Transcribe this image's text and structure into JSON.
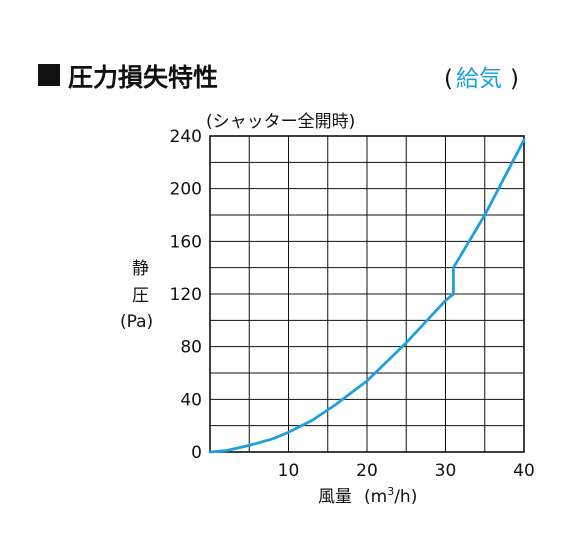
{
  "header": {
    "title_marker": "■",
    "title": "圧力損失特性",
    "mode_open": "(",
    "mode": "給気",
    "mode_close": ")"
  },
  "colors": {
    "accent": "#1ea0dc",
    "grid": "#111111",
    "text": "#111111"
  },
  "chart_data": {
    "type": "line",
    "title": "圧力損失特性",
    "subtitle": "(シャッター全開時)",
    "xlabel": "風量",
    "xunit_open": "(",
    "xunit_base": "m",
    "xunit_sup": "3",
    "xunit_rest": "/h)",
    "ylabel_line1": "静",
    "ylabel_line2": "圧",
    "ylabel_line3": "(Pa)",
    "xlim": [
      0,
      40
    ],
    "ylim": [
      0,
      240
    ],
    "grid": true,
    "xticks": [
      10,
      20,
      30,
      40
    ],
    "xtick_labels": [
      "10",
      "20",
      "30",
      "40"
    ],
    "yticks": [
      0,
      40,
      80,
      120,
      160,
      200,
      240
    ],
    "ytick_labels": [
      "0",
      "40",
      "80",
      "120",
      "160",
      "200",
      "240"
    ],
    "series": [
      {
        "color": "#1ea0dc",
        "x": [
          0,
          2,
          5,
          8,
          10,
          13,
          16,
          20,
          25,
          30,
          31,
          31,
          35,
          40
        ],
        "y": [
          0,
          1,
          5,
          10,
          15,
          24,
          36,
          54,
          83,
          115,
          120,
          140,
          180,
          237
        ]
      }
    ]
  }
}
